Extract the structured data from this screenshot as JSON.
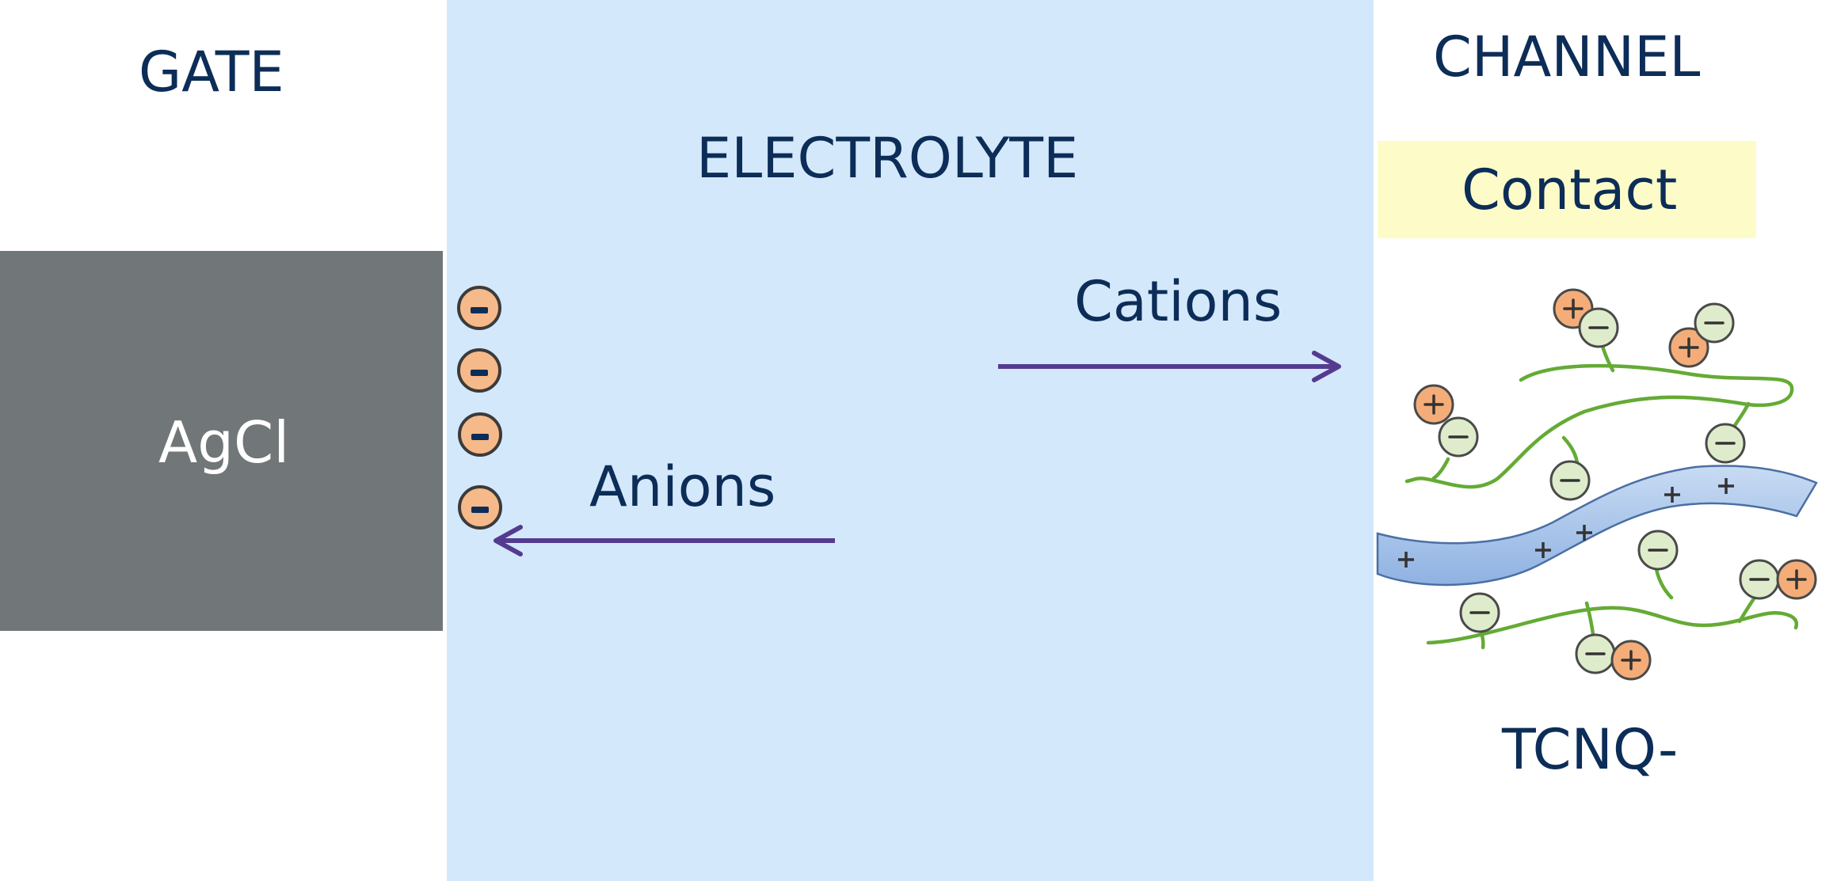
{
  "labels": {
    "gate": "GATE",
    "electrolyte": "ELECTROLYTE",
    "channel": "CHANNEL",
    "contact": "Contact",
    "gate_material": "AgCl",
    "cations": "Cations",
    "anions": "Anions",
    "channel_material": "TCNQ-"
  },
  "anion_symbol": "-",
  "colors": {
    "electrolyte_fill": "#d4e8fc",
    "gate_fill": "#717678",
    "contact_fill": "#fdfcc9",
    "text": "#0c2d57",
    "arrow": "#553b8f",
    "anion_fill": "#f6b98a",
    "cation_marker_fill": "#f4ad78",
    "anion_marker_fill": "#dfeccc",
    "polymer_chain": "#64ab35",
    "ribbon": "#9fc0e8"
  },
  "icons": {
    "adsorbed_anions": "minus-circle-icon",
    "cations_arrow": "arrow-right-icon",
    "anions_arrow": "arrow-left-icon",
    "channel_polymer": "polymer-network-illustration"
  }
}
